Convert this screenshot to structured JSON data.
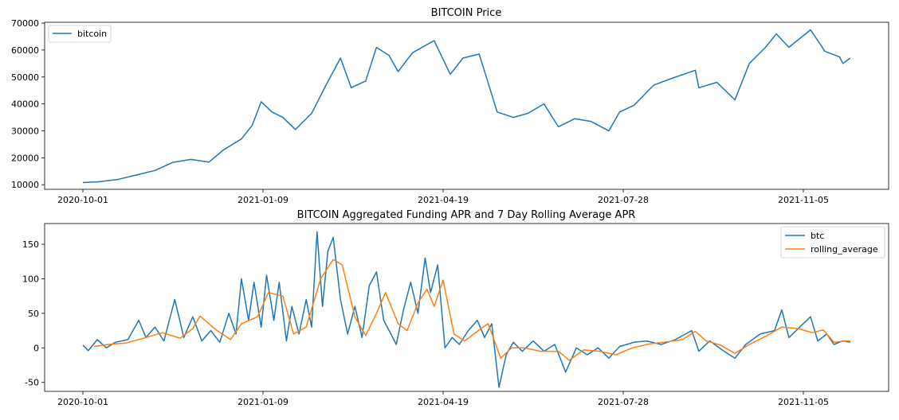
{
  "chart_data": [
    {
      "type": "line",
      "title": "BITCOIN Price",
      "xlabel": "",
      "ylabel": "",
      "x_ticks": [
        "2020-10-01",
        "2021-01-09",
        "2021-04-19",
        "2021-07-28",
        "2021-11-05"
      ],
      "y_ticks": [
        10000,
        20000,
        30000,
        40000,
        50000,
        60000,
        70000
      ],
      "ylim": [
        8300,
        70300
      ],
      "legend_position": "top-left",
      "grid": false,
      "series": [
        {
          "name": "bitcoin",
          "color": "#1f77b4",
          "points": [
            [
              "2020-10-01",
              10800
            ],
            [
              "2020-10-10",
              11100
            ],
            [
              "2020-10-20",
              11900
            ],
            [
              "2020-10-30",
              13500
            ],
            [
              "2020-11-10",
              15300
            ],
            [
              "2020-11-20",
              18300
            ],
            [
              "2020-11-30",
              19400
            ],
            [
              "2020-12-10",
              18400
            ],
            [
              "2020-12-18",
              22900
            ],
            [
              "2020-12-28",
              27000
            ],
            [
              "2021-01-03",
              32000
            ],
            [
              "2021-01-08",
              40800
            ],
            [
              "2021-01-14",
              37000
            ],
            [
              "2021-01-20",
              35000
            ],
            [
              "2021-01-27",
              30500
            ],
            [
              "2021-02-05",
              36500
            ],
            [
              "2021-02-13",
              47000
            ],
            [
              "2021-02-21",
              57000
            ],
            [
              "2021-02-27",
              46000
            ],
            [
              "2021-03-07",
              48500
            ],
            [
              "2021-03-13",
              61000
            ],
            [
              "2021-03-20",
              58000
            ],
            [
              "2021-03-25",
              52000
            ],
            [
              "2021-04-02",
              59000
            ],
            [
              "2021-04-14",
              63500
            ],
            [
              "2021-04-23",
              51000
            ],
            [
              "2021-04-30",
              57000
            ],
            [
              "2021-05-09",
              58500
            ],
            [
              "2021-05-13",
              50000
            ],
            [
              "2021-05-19",
              37000
            ],
            [
              "2021-05-28",
              35000
            ],
            [
              "2021-06-05",
              36500
            ],
            [
              "2021-06-14",
              40000
            ],
            [
              "2021-06-22",
              31500
            ],
            [
              "2021-07-01",
              34500
            ],
            [
              "2021-07-10",
              33500
            ],
            [
              "2021-07-20",
              30000
            ],
            [
              "2021-07-26",
              37000
            ],
            [
              "2021-08-03",
              39500
            ],
            [
              "2021-08-14",
              47000
            ],
            [
              "2021-08-24",
              49500
            ],
            [
              "2021-09-06",
              52500
            ],
            [
              "2021-09-08",
              46000
            ],
            [
              "2021-09-18",
              48000
            ],
            [
              "2021-09-28",
              41500
            ],
            [
              "2021-10-06",
              55000
            ],
            [
              "2021-10-15",
              61000
            ],
            [
              "2021-10-21",
              66000
            ],
            [
              "2021-10-28",
              61000
            ],
            [
              "2021-11-09",
              67500
            ],
            [
              "2021-11-17",
              59500
            ],
            [
              "2021-11-25",
              57500
            ],
            [
              "2021-11-27",
              55000
            ],
            [
              "2021-12-01",
              57000
            ]
          ]
        }
      ]
    },
    {
      "type": "line",
      "title": "BITCOIN Aggregated Funding APR and 7 Day Rolling Average APR",
      "xlabel": "",
      "ylabel": "",
      "x_ticks": [
        "2020-10-01",
        "2021-01-09",
        "2021-04-19",
        "2021-07-28",
        "2021-11-05"
      ],
      "y_ticks": [
        -50,
        0,
        50,
        100,
        150
      ],
      "ylim": [
        -63,
        180
      ],
      "legend_position": "top-right",
      "grid": false,
      "series": [
        {
          "name": "btc",
          "color": "#1f77b4",
          "points": [
            [
              "2020-10-01",
              4
            ],
            [
              "2020-10-04",
              -4
            ],
            [
              "2020-10-09",
              12
            ],
            [
              "2020-10-14",
              0
            ],
            [
              "2020-10-19",
              8
            ],
            [
              "2020-10-26",
              12
            ],
            [
              "2020-11-01",
              40
            ],
            [
              "2020-11-05",
              15
            ],
            [
              "2020-11-10",
              30
            ],
            [
              "2020-11-15",
              10
            ],
            [
              "2020-11-21",
              70
            ],
            [
              "2020-11-26",
              15
            ],
            [
              "2020-12-01",
              45
            ],
            [
              "2020-12-06",
              10
            ],
            [
              "2020-12-11",
              25
            ],
            [
              "2020-12-16",
              8
            ],
            [
              "2020-12-21",
              50
            ],
            [
              "2020-12-25",
              20
            ],
            [
              "2020-12-28",
              100
            ],
            [
              "2021-01-01",
              40
            ],
            [
              "2021-01-04",
              95
            ],
            [
              "2021-01-08",
              30
            ],
            [
              "2021-01-11",
              105
            ],
            [
              "2021-01-15",
              40
            ],
            [
              "2021-01-18",
              95
            ],
            [
              "2021-01-22",
              10
            ],
            [
              "2021-01-25",
              60
            ],
            [
              "2021-01-29",
              20
            ],
            [
              "2021-02-02",
              70
            ],
            [
              "2021-02-05",
              30
            ],
            [
              "2021-02-08",
              168
            ],
            [
              "2021-02-11",
              60
            ],
            [
              "2021-02-14",
              140
            ],
            [
              "2021-02-17",
              160
            ],
            [
              "2021-02-21",
              70
            ],
            [
              "2021-02-25",
              20
            ],
            [
              "2021-03-01",
              60
            ],
            [
              "2021-03-05",
              15
            ],
            [
              "2021-03-09",
              90
            ],
            [
              "2021-03-13",
              110
            ],
            [
              "2021-03-17",
              40
            ],
            [
              "2021-03-21",
              20
            ],
            [
              "2021-03-24",
              5
            ],
            [
              "2021-03-28",
              55
            ],
            [
              "2021-04-01",
              95
            ],
            [
              "2021-04-05",
              50
            ],
            [
              "2021-04-09",
              130
            ],
            [
              "2021-04-12",
              80
            ],
            [
              "2021-04-16",
              120
            ],
            [
              "2021-04-20",
              0
            ],
            [
              "2021-04-24",
              15
            ],
            [
              "2021-04-28",
              5
            ],
            [
              "2021-05-03",
              25
            ],
            [
              "2021-05-08",
              40
            ],
            [
              "2021-05-12",
              15
            ],
            [
              "2021-05-16",
              35
            ],
            [
              "2021-05-20",
              -57
            ],
            [
              "2021-05-24",
              -10
            ],
            [
              "2021-05-28",
              8
            ],
            [
              "2021-06-02",
              -5
            ],
            [
              "2021-06-08",
              10
            ],
            [
              "2021-06-14",
              -5
            ],
            [
              "2021-06-20",
              5
            ],
            [
              "2021-06-26",
              -35
            ],
            [
              "2021-07-02",
              0
            ],
            [
              "2021-07-08",
              -10
            ],
            [
              "2021-07-14",
              0
            ],
            [
              "2021-07-20",
              -15
            ],
            [
              "2021-07-26",
              2
            ],
            [
              "2021-08-03",
              8
            ],
            [
              "2021-08-10",
              10
            ],
            [
              "2021-08-18",
              5
            ],
            [
              "2021-08-26",
              12
            ],
            [
              "2021-09-04",
              25
            ],
            [
              "2021-09-08",
              -5
            ],
            [
              "2021-09-14",
              10
            ],
            [
              "2021-09-22",
              -5
            ],
            [
              "2021-09-28",
              -15
            ],
            [
              "2021-10-04",
              5
            ],
            [
              "2021-10-12",
              20
            ],
            [
              "2021-10-20",
              25
            ],
            [
              "2021-10-24",
              55
            ],
            [
              "2021-10-28",
              15
            ],
            [
              "2021-11-03",
              30
            ],
            [
              "2021-11-09",
              45
            ],
            [
              "2021-11-13",
              10
            ],
            [
              "2021-11-18",
              20
            ],
            [
              "2021-11-22",
              5
            ],
            [
              "2021-11-27",
              10
            ],
            [
              "2021-12-01",
              8
            ]
          ]
        },
        {
          "name": "rolling_average",
          "color": "#ff7f0e",
          "points": [
            [
              "2020-10-07",
              2
            ],
            [
              "2020-10-15",
              5
            ],
            [
              "2020-10-25",
              7
            ],
            [
              "2020-11-05",
              15
            ],
            [
              "2020-11-14",
              22
            ],
            [
              "2020-11-24",
              14
            ],
            [
              "2020-12-01",
              28
            ],
            [
              "2020-12-05",
              46
            ],
            [
              "2020-12-14",
              26
            ],
            [
              "2020-12-22",
              12
            ],
            [
              "2020-12-28",
              35
            ],
            [
              "2021-01-06",
              45
            ],
            [
              "2021-01-12",
              80
            ],
            [
              "2021-01-20",
              75
            ],
            [
              "2021-01-26",
              20
            ],
            [
              "2021-02-02",
              30
            ],
            [
              "2021-02-10",
              100
            ],
            [
              "2021-02-17",
              128
            ],
            [
              "2021-02-22",
              120
            ],
            [
              "2021-03-01",
              45
            ],
            [
              "2021-03-07",
              18
            ],
            [
              "2021-03-13",
              50
            ],
            [
              "2021-03-18",
              80
            ],
            [
              "2021-03-25",
              35
            ],
            [
              "2021-03-30",
              25
            ],
            [
              "2021-04-05",
              65
            ],
            [
              "2021-04-10",
              85
            ],
            [
              "2021-04-14",
              60
            ],
            [
              "2021-04-19",
              98
            ],
            [
              "2021-04-25",
              20
            ],
            [
              "2021-05-01",
              10
            ],
            [
              "2021-05-10",
              28
            ],
            [
              "2021-05-14",
              35
            ],
            [
              "2021-05-21",
              -15
            ],
            [
              "2021-05-27",
              0
            ],
            [
              "2021-06-03",
              0
            ],
            [
              "2021-06-12",
              -5
            ],
            [
              "2021-06-22",
              -5
            ],
            [
              "2021-06-28",
              -18
            ],
            [
              "2021-07-06",
              -3
            ],
            [
              "2021-07-15",
              -5
            ],
            [
              "2021-07-24",
              -10
            ],
            [
              "2021-08-02",
              0
            ],
            [
              "2021-08-12",
              6
            ],
            [
              "2021-08-22",
              9
            ],
            [
              "2021-08-30",
              12
            ],
            [
              "2021-09-06",
              24
            ],
            [
              "2021-09-12",
              10
            ],
            [
              "2021-09-20",
              4
            ],
            [
              "2021-09-28",
              -8
            ],
            [
              "2021-10-06",
              5
            ],
            [
              "2021-10-16",
              18
            ],
            [
              "2021-10-24",
              30
            ],
            [
              "2021-11-02",
              28
            ],
            [
              "2021-11-10",
              22
            ],
            [
              "2021-11-16",
              26
            ],
            [
              "2021-11-22",
              8
            ],
            [
              "2021-11-28",
              10
            ],
            [
              "2021-12-01",
              10
            ]
          ]
        }
      ]
    }
  ]
}
